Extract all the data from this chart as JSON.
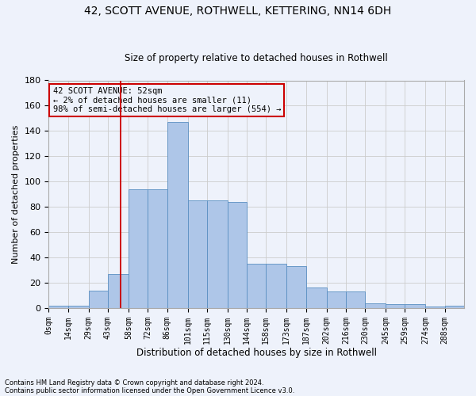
{
  "title": "42, SCOTT AVENUE, ROTHWELL, KETTERING, NN14 6DH",
  "subtitle": "Size of property relative to detached houses in Rothwell",
  "xlabel": "Distribution of detached houses by size in Rothwell",
  "ylabel": "Number of detached properties",
  "footnote1": "Contains HM Land Registry data © Crown copyright and database right 2024.",
  "footnote2": "Contains public sector information licensed under the Open Government Licence v3.0.",
  "annotation_line1": "42 SCOTT AVENUE: 52sqm",
  "annotation_line2": "← 2% of detached houses are smaller (11)",
  "annotation_line3": "98% of semi-detached houses are larger (554) →",
  "bar_values": [
    2,
    2,
    14,
    27,
    94,
    94,
    147,
    85,
    85,
    84,
    35,
    35,
    33,
    16,
    13,
    13,
    4,
    3,
    3,
    1,
    2
  ],
  "bin_edges": [
    0,
    14,
    29,
    43,
    58,
    72,
    86,
    101,
    115,
    130,
    144,
    158,
    173,
    187,
    202,
    216,
    230,
    245,
    259,
    274,
    288,
    302
  ],
  "tick_labels": [
    "0sqm",
    "14sqm",
    "29sqm",
    "43sqm",
    "58sqm",
    "72sqm",
    "86sqm",
    "101sqm",
    "115sqm",
    "130sqm",
    "144sqm",
    "158sqm",
    "173sqm",
    "187sqm",
    "202sqm",
    "216sqm",
    "230sqm",
    "245sqm",
    "259sqm",
    "274sqm",
    "288sqm"
  ],
  "bar_color": "#aec6e8",
  "bar_edge_color": "#5a8fc2",
  "property_value": 52,
  "vline_color": "#cc0000",
  "annotation_box_color": "#cc0000",
  "grid_color": "#cccccc",
  "background_color": "#eef2fb",
  "ylim": [
    0,
    180
  ],
  "yticks": [
    0,
    20,
    40,
    60,
    80,
    100,
    120,
    140,
    160,
    180
  ]
}
